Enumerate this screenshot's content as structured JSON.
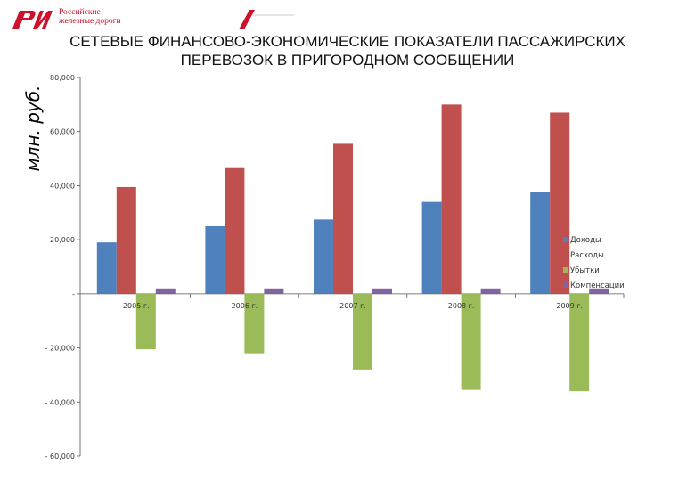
{
  "header": {
    "brand_line1": "Российские",
    "brand_line2": "железные дороги",
    "logo_text": "РЖД",
    "brand_color": "#d0102a"
  },
  "chart_data": {
    "type": "bar",
    "title": "СЕТЕВЫЕ ФИНАНСОВО-ЭКОНОМИЧЕСКИЕ ПОКАЗАТЕЛИ ПАССАЖИРСКИХ ПЕРЕВОЗОК В ПРИГОРОДНОМ СООБЩЕНИИ",
    "ylabel": "млн. руб.",
    "xlabel": "",
    "categories": [
      "2005 г.",
      "2006 г.",
      "2007 г.",
      "2008 г.",
      "2009 г."
    ],
    "ylim": [
      -60000,
      80000
    ],
    "yticks": [
      80000,
      60000,
      40000,
      20000,
      0,
      -20000,
      -40000,
      -60000
    ],
    "ytick_labels": [
      "80,000",
      "60,000",
      "40,000",
      "20,000",
      "-",
      "- 20,000",
      "- 40,000",
      "- 60,000"
    ],
    "grid": false,
    "legend_position": "right",
    "series": [
      {
        "name": "Доходы",
        "color": "#4f81bd",
        "values": [
          19000,
          25000,
          27500,
          34000,
          37500
        ]
      },
      {
        "name": "Расходы",
        "color": "#c0504d",
        "values": [
          39500,
          46500,
          55500,
          70000,
          67000
        ]
      },
      {
        "name": "Убытки",
        "color": "#9bbb59",
        "values": [
          -20500,
          -22000,
          -28000,
          -35500,
          -36000
        ]
      },
      {
        "name": "Компенсации",
        "color": "#8064a2",
        "values": [
          2000,
          2000,
          2000,
          2000,
          2000
        ]
      }
    ]
  }
}
